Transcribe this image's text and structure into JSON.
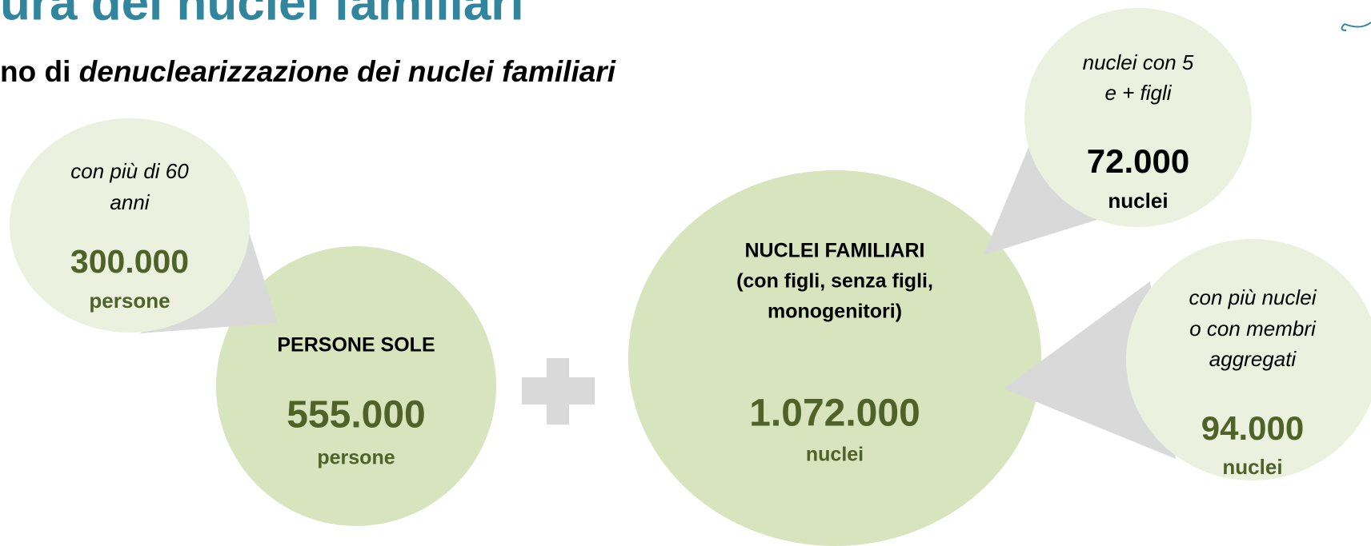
{
  "header": {
    "title": "ura dei nuclei familiari",
    "subtitle_prefix": "no di",
    "subtitle_emph": "denuclearizzazione dei nuclei familiari"
  },
  "nodes": [
    {
      "lines": [
        "PERSONE SOLE"
      ],
      "value": "555.000",
      "unit": "persone"
    },
    {
      "lines": [
        "con più di 60",
        "anni"
      ],
      "value": "300.000",
      "unit": "persone"
    },
    {
      "lines": [
        "NUCLEI FAMILIARI",
        "(con figli, senza figli,",
        "monogenitori)"
      ],
      "value": "1.072.000",
      "unit": "nuclei"
    },
    {
      "lines": [
        "nuclei con 5",
        "e + figli"
      ],
      "value": "72.000",
      "unit": "nuclei"
    },
    {
      "lines": [
        "con più nuclei",
        "o con membri",
        "aggregati"
      ],
      "value": "94.000",
      "unit": "nuclei"
    }
  ]
}
